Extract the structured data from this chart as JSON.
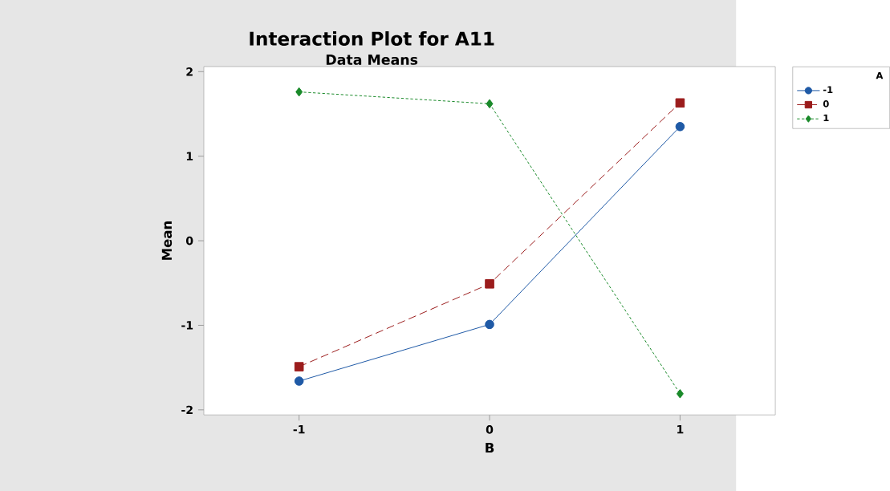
{
  "chart_data": {
    "type": "line",
    "title": "Interaction Plot for A11",
    "subtitle": "Data Means",
    "xlabel": "B",
    "ylabel": "Mean",
    "legend_title": "A",
    "x": [
      -1,
      0,
      1
    ],
    "series": [
      {
        "name": "-1",
        "color": "#1f5aa6",
        "values": [
          -1.66,
          -0.99,
          1.35
        ],
        "marker": "circle",
        "line_style": "solid"
      },
      {
        "name": "0",
        "color": "#9b1c1c",
        "values": [
          -1.49,
          -0.51,
          1.63
        ],
        "marker": "square",
        "line_style": "dashed"
      },
      {
        "name": "1",
        "color": "#1a8a2a",
        "values": [
          1.76,
          1.62,
          -1.81
        ],
        "marker": "diamond",
        "line_style": "dotted"
      }
    ],
    "xlim": [
      -1.5,
      1.5
    ],
    "ylim": [
      -2.06,
      2.06
    ],
    "xticks": [
      -1,
      0,
      1
    ],
    "yticks": [
      -2,
      -1,
      0,
      1,
      2
    ],
    "grid": false,
    "legend": "top right"
  }
}
